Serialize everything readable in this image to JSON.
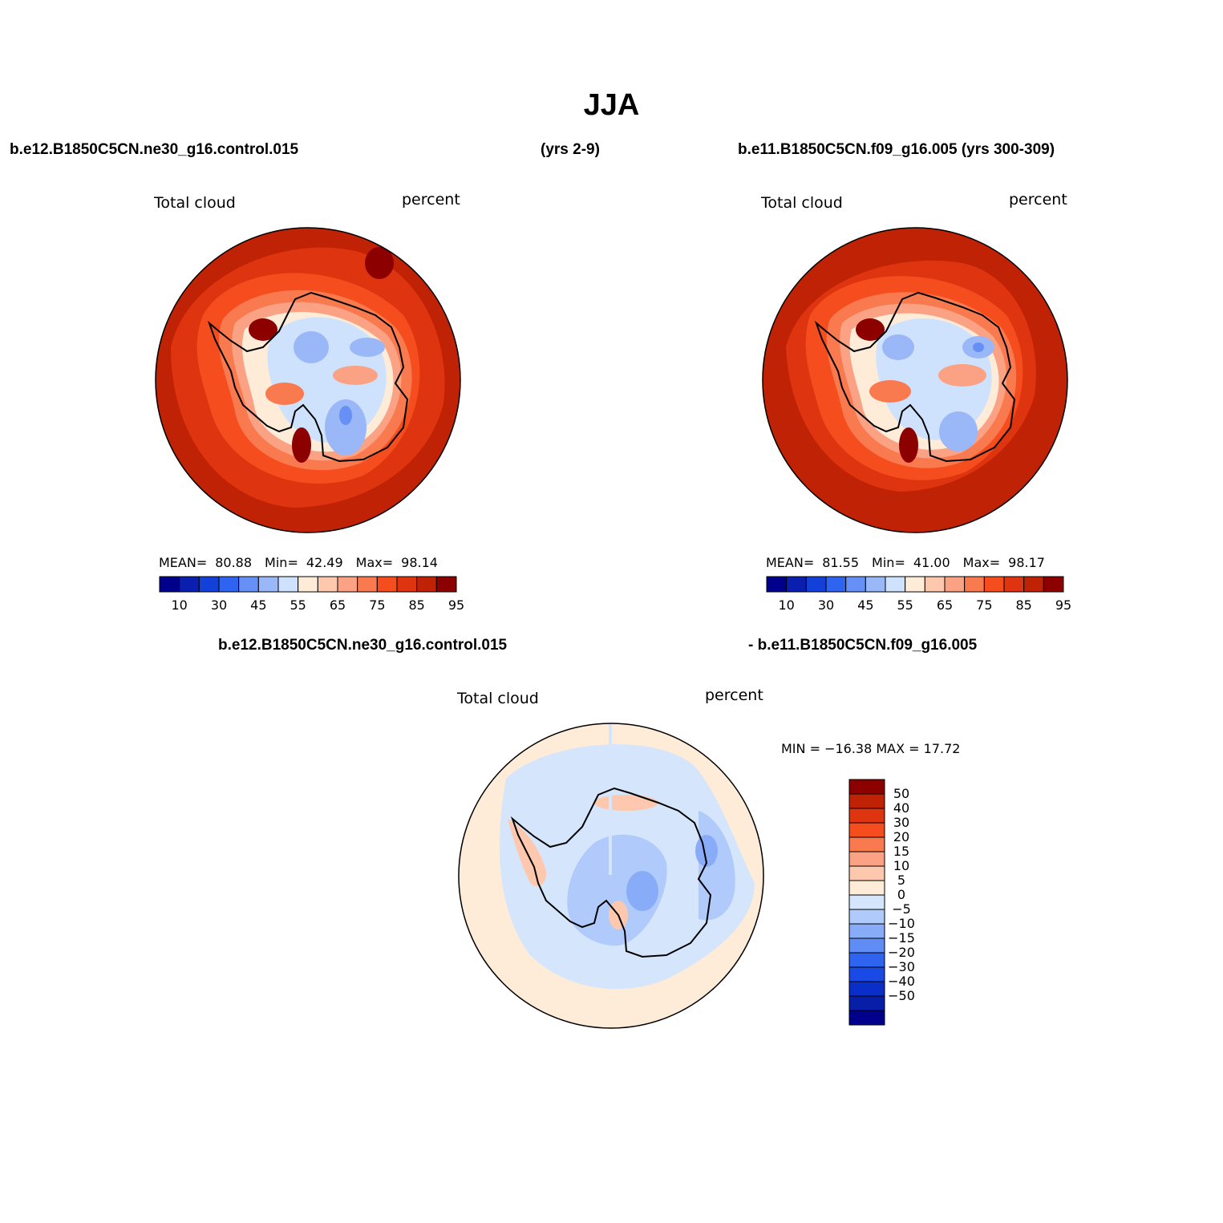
{
  "figure": {
    "title": "JJA",
    "header_left": "b.e12.B1850C5CN.ne30_g16.control.015",
    "header_mid": "(yrs 2-9)",
    "header_right": "b.e11.B1850C5CN.f09_g16.005 (yrs 300-309)",
    "diff_header_left": "b.e12.B1850C5CN.ne30_g16.control.015",
    "diff_header_right": "- b.e11.B1850C5CN.f09_g16.005"
  },
  "panels": [
    {
      "variable": "Total cloud",
      "units": "percent",
      "mean_label": "MEAN=",
      "mean": "80.88",
      "min_label": "Min=",
      "min": "42.49",
      "max_label": "Max=",
      "max": "98.14"
    },
    {
      "variable": "Total cloud",
      "units": "percent",
      "mean_label": "MEAN=",
      "mean": "81.55",
      "min_label": "Min=",
      "min": "41.00",
      "max_label": "Max=",
      "max": "98.17"
    }
  ],
  "diff_panel": {
    "variable": "Total cloud",
    "units": "percent",
    "minmax": "MIN = −16.38 MAX =  17.72"
  },
  "colorbar_abs": {
    "colors": [
      "#00008c",
      "#0a1eb0",
      "#1240d8",
      "#2e64f0",
      "#6690f5",
      "#9ab8f8",
      "#cfe2fd",
      "#feebd8",
      "#fdc8ad",
      "#fba284",
      "#fa7a50",
      "#f64d1e",
      "#de3410",
      "#bf2204",
      "#8c0000"
    ],
    "tick_labels": [
      "10",
      "30",
      "45",
      "55",
      "65",
      "75",
      "85",
      "95"
    ]
  },
  "colorbar_diff": {
    "colors": [
      "#8c0000",
      "#bf2204",
      "#de3410",
      "#f64d1e",
      "#fa7a50",
      "#fba284",
      "#fdc8ad",
      "#feebd8",
      "#d5e6fc",
      "#b0cbfb",
      "#88acf8",
      "#5f8cf5",
      "#2e64f0",
      "#1a4ae6",
      "#0a2ec8",
      "#061ea8",
      "#00008c"
    ],
    "tick_labels": [
      "50",
      "40",
      "30",
      "20",
      "15",
      "10",
      "5",
      "0",
      "−5",
      "−10",
      "−15",
      "−20",
      "−30",
      "−40",
      "−50"
    ]
  },
  "map_colors": {
    "ocean_far": "#bf2204",
    "ocean_mid": "#de3410",
    "ocean_near": "#f64d1e",
    "coast_band1": "#fa7a50",
    "coast_band2": "#fba284",
    "coast_band3": "#fdc8ad",
    "ice_edge": "#feebd8",
    "interior_light": "#cfe2fd",
    "interior_mid": "#9ab8f8",
    "interior_deep": "#6690f5",
    "peak": "#8c0000",
    "diff_bg": "#feebd8",
    "diff_neg_light": "#d5e6fc",
    "diff_neg_mid": "#b0cbfb",
    "diff_neg_deep": "#88acf8",
    "diff_pos": "#fdc8ad",
    "coastline": "#000000"
  }
}
